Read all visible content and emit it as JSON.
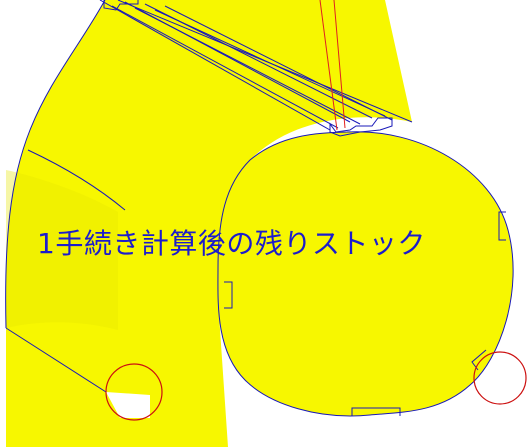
{
  "caption": {
    "text": "1手続き計算後の残りストック",
    "color": "#1c1ccc"
  },
  "colors": {
    "stock_face": "#f7f700",
    "stock_shade": "#e6e600",
    "stock_edge": "#1818b8",
    "background": "#ffffff",
    "tool_line": "#e02020",
    "marker_circle": "#cc1010"
  },
  "markers": [
    {
      "name": "bottom-left-gap-marker",
      "shape": "circle"
    },
    {
      "name": "bottom-right-gap-marker",
      "shape": "circle"
    }
  ]
}
